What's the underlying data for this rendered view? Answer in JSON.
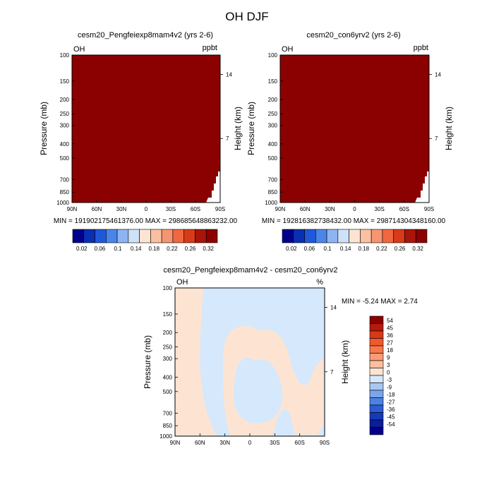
{
  "page": {
    "title": "OH DJF"
  },
  "colors": {
    "saturated": "#8b0000",
    "diff_positive": "#fde4d2",
    "diff_negative": "#d6e8fb"
  },
  "chart_data": [
    {
      "type": "heatmap",
      "title": "cesm20_Pengfeiexp8mam4v2 (yrs 2-6)",
      "left_label": "OH",
      "right_label": "ppbt",
      "ylabel": "Pressure (mb)",
      "ylabel_right": "Height (km)",
      "x_ticks": [
        "90N",
        "60N",
        "30N",
        "0",
        "30S",
        "60S",
        "90S"
      ],
      "y_ticks": [
        100,
        150,
        200,
        250,
        300,
        400,
        500,
        700,
        850,
        1000
      ],
      "y_right_ticks": [
        14,
        7
      ],
      "stats": "MIN = 191902175461376.00   MAX = 298685648863232.00",
      "fill": "saturated above top colorbar level",
      "colorbar": [
        0.02,
        0.06,
        0.1,
        0.14,
        0.18,
        0.22,
        0.26,
        0.32
      ]
    },
    {
      "type": "heatmap",
      "title": "cesm20_con6yrv2 (yrs 2-6)",
      "left_label": "OH",
      "right_label": "ppbt",
      "ylabel": "Pressure (mb)",
      "ylabel_right": "Height (km)",
      "x_ticks": [
        "90N",
        "60N",
        "30N",
        "0",
        "30S",
        "60S",
        "90S"
      ],
      "y_ticks": [
        100,
        150,
        200,
        250,
        300,
        400,
        500,
        700,
        850,
        1000
      ],
      "y_right_ticks": [
        14,
        7
      ],
      "stats": "MIN = 192816382738432.00   MAX = 298714304348160.00",
      "fill": "saturated above top colorbar level",
      "colorbar": [
        0.02,
        0.06,
        0.1,
        0.14,
        0.18,
        0.22,
        0.26,
        0.32
      ]
    },
    {
      "type": "heatmap",
      "title": "cesm20_Pengfeiexp8mam4v2 - cesm20_con6yrv2",
      "left_label": "OH",
      "right_label": "%",
      "ylabel": "Pressure (mb)",
      "ylabel_right": "Height (km)",
      "x_ticks": [
        "90N",
        "60N",
        "30N",
        "0",
        "30S",
        "60S",
        "90S"
      ],
      "y_ticks": [
        100,
        150,
        200,
        250,
        300,
        400,
        500,
        700,
        850,
        1000
      ],
      "y_right_ticks": [
        14,
        7
      ],
      "stats": "MIN =  -5.24  MAX =    2.74",
      "colorbar": [
        54,
        45,
        36,
        27,
        18,
        9,
        3,
        0,
        -3,
        -9,
        -18,
        -27,
        -36,
        -45,
        -54
      ]
    }
  ]
}
